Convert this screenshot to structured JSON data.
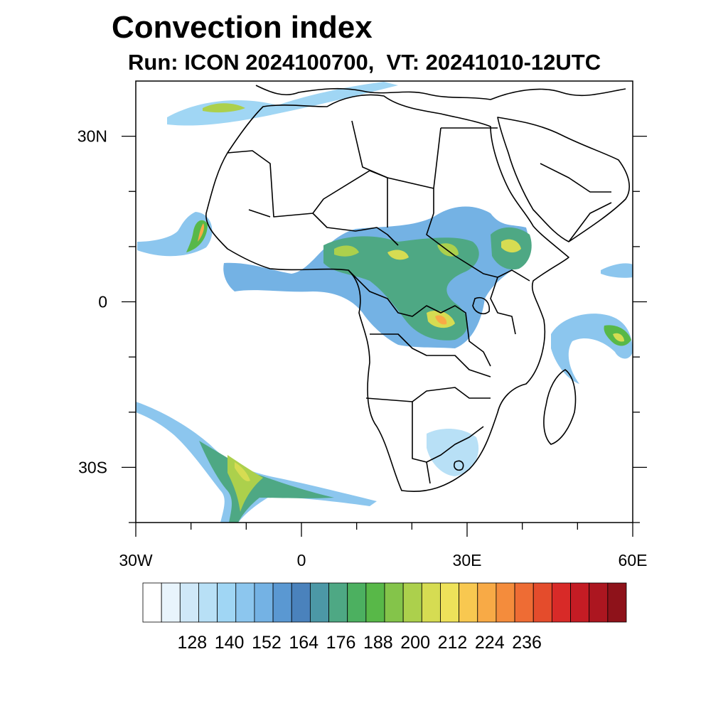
{
  "title": "Convection index",
  "subtitle": "Run: ICON 2024100700,  VT: 20241010-12UTC",
  "map": {
    "type": "heatmap",
    "projection": "lat-lon",
    "lon_range": [
      -30,
      60
    ],
    "lat_range": [
      -40,
      40
    ],
    "lon_ticks": [
      {
        "value": -30,
        "label": "30W"
      },
      {
        "value": 0,
        "label": "0"
      },
      {
        "value": 30,
        "label": "30E"
      },
      {
        "value": 60,
        "label": "60E"
      }
    ],
    "lat_ticks": [
      {
        "value": 30,
        "label": "30N"
      },
      {
        "value": 0,
        "label": "0"
      },
      {
        "value": -30,
        "label": "30S"
      }
    ],
    "minor_lon_ticks": [
      -20,
      -10,
      10,
      20,
      40,
      50
    ],
    "minor_lat_ticks": [
      20,
      10,
      -10,
      -20,
      -40
    ]
  },
  "colorbar": {
    "labels": [
      "128",
      "140",
      "152",
      "164",
      "176",
      "188",
      "200",
      "212",
      "224",
      "236"
    ],
    "colors": [
      "#ffffff",
      "#e8f4fc",
      "#cfe8f8",
      "#b8e0f6",
      "#a0d6f4",
      "#8cc6ee",
      "#74b2e4",
      "#5a98d2",
      "#4a82bc",
      "#4c98a6",
      "#4ea884",
      "#4cb060",
      "#58b848",
      "#84c44a",
      "#acd04c",
      "#d6dc52",
      "#eee25a",
      "#f8c850",
      "#f8aa46",
      "#f48c3c",
      "#ee6c34",
      "#e44c2c",
      "#d82a28",
      "#c41c24",
      "#ac1620",
      "#8e121a"
    ]
  },
  "colors": {
    "coast": "#000000",
    "low": "#a0d6f4",
    "mid": "#5a98d2",
    "green": "#58b848",
    "yellow": "#d6dc52",
    "orange": "#f8aa46",
    "red": "#e44c2c"
  }
}
